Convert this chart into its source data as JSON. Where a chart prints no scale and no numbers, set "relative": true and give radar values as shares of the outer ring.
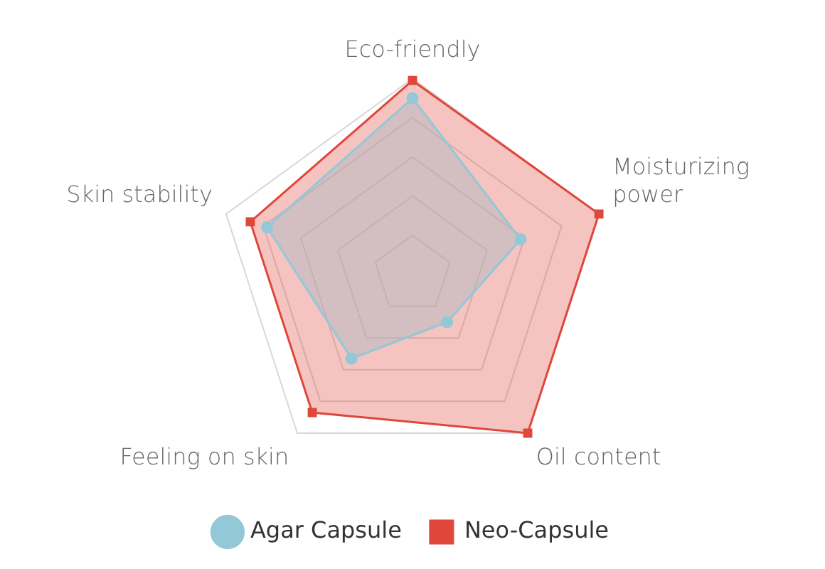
{
  "chart_data": {
    "type": "radar",
    "relative": true,
    "grid": true,
    "legend": "bottom",
    "categories": [
      "Eco-friendly",
      "Moisturizing power",
      "Oil content",
      "Feeling on skin",
      "Skin stability"
    ],
    "series": [
      {
        "name": "Agar Capsule",
        "color": "#92c8d8",
        "marker": "circle",
        "values": [
          0.9,
          0.58,
          0.3,
          0.53,
          0.78
        ]
      },
      {
        "name": "Neo-Capsule",
        "color": "#e0463a",
        "marker": "square",
        "values": [
          0.99,
          1,
          1,
          0.87,
          0.87
        ]
      }
    ]
  }
}
